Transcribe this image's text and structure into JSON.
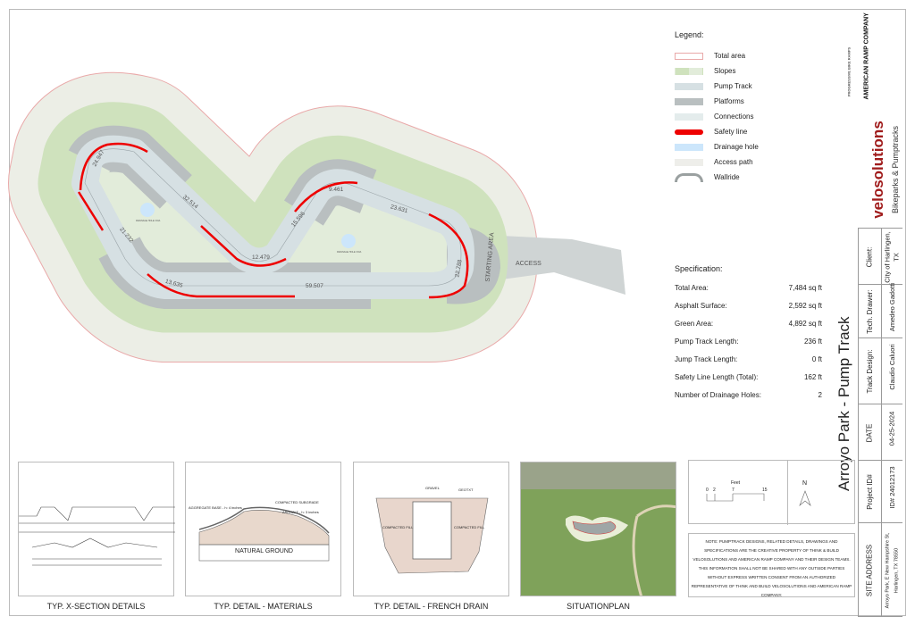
{
  "title": "Arroyo Park - Pump Track",
  "legend": {
    "heading": "Legend:",
    "items": [
      {
        "label": "Total area",
        "color": "#ffffff",
        "border": "#e9a9a9"
      },
      {
        "label": "Slopes",
        "color": "#cfe2bd"
      },
      {
        "label": "Pump Track",
        "color": "#d6e0e3"
      },
      {
        "label": "Platforms",
        "color": "#b9bfc0"
      },
      {
        "label": "Connections",
        "color": "#e4ecec"
      },
      {
        "label": "Safety line",
        "color": "#ee0000"
      },
      {
        "label": "Drainage hole",
        "color": "#cce6fb"
      },
      {
        "label": "Access path",
        "color": "#eeeeea"
      },
      {
        "label": "Wallride",
        "color": "#9aa0a0"
      }
    ]
  },
  "specification": {
    "heading": "Specification:",
    "rows": [
      {
        "label": "Total Area:",
        "value": "7,484 sq ft"
      },
      {
        "label": "Asphalt Surface:",
        "value": "2,592 sq ft"
      },
      {
        "label": "Green Area:",
        "value": "4,892 sq ft"
      },
      {
        "label": "Pump Track Length:",
        "value": "236 ft"
      },
      {
        "label": "Jump Track Length:",
        "value": "0 ft"
      },
      {
        "label": "Safety Line Length (Total):",
        "value": "162 ft"
      },
      {
        "label": "Number of Drainage Holes:",
        "value": "2"
      }
    ]
  },
  "plan": {
    "dimensions": [
      "24.947",
      "32.514",
      "21.232",
      "12.479",
      "15.596",
      "9.461",
      "23.631",
      "22.788",
      "59.507",
      "13.635"
    ],
    "starting_area": "STARTING AREA",
    "access": "ACCESS",
    "drainage_label": "DRAINAGE HOLE 1'DIA",
    "colors": {
      "total": "#eceee6",
      "slopes": "#cfe2bd",
      "track": "#d6e0e3",
      "platform": "#b9bfc0",
      "safety": "#ee0000",
      "drain": "#cce6fb"
    }
  },
  "title_block": {
    "client_label": "Client:",
    "client": "City of Harlingen, TX",
    "drawer_label": "Tech. Drawer:",
    "drawer": "Amedeo Gadotti",
    "design_label": "Track Design:",
    "design": "Claudio Caluori",
    "date_label": "DATE",
    "date": "04-25-2024",
    "project_label": "Project ID#",
    "project": "ID# 24012173",
    "site_label": "SITE ADDRESS",
    "site": "Arroyo Park, E New Hampshire St, Harlingen, TX 78550"
  },
  "logos": {
    "brand": "velosolutions",
    "tagline": "Bikeparks & Pumptracks",
    "partner1": "PROGRESSIVE BIKE RAMPS",
    "partner2": "AMERICAN RAMP COMPANY",
    "brand_color": "#a01c1c"
  },
  "details": {
    "xsection": "TYP. X-SECTION DETAILS",
    "materials": "TYP. DETAIL - MATERIALS",
    "french_drain": "TYP. DETAIL - FRENCH DRAIN",
    "situation": "SITUATIONPLAN",
    "aggregate": "AGGREGATE BASE - h: 4 inches",
    "subgrade": "COMPACTED SUBGRADE",
    "asphalt": "ASPHALT - h: 3 inches",
    "natural": "NATURAL GROUND",
    "gravel": "GRAVEL",
    "geotxt": "GEOTXT",
    "fill": "COMPACTED FILL"
  },
  "scale": {
    "unit": "Feet",
    "ticks": [
      "0",
      "2",
      "7",
      "15"
    ],
    "north": "N"
  },
  "note": "NOTE: PUMPTRACK DESIGNS, RELATED DETAILS, DRAWINGS AND SPECIFICATIONS ARE THE CREATIVE PROPERTY OF THINK & BUILD VELOSOLUTIONS AND AMERICAN RAMP COMPANY AND THEIR DESIGN TEAMS. THIS INFORMATION SHALL NOT BE SHARED WITH ANY OUTSIDE PARTIES WITHOUT EXPRESS WRITTEN CONSENT FROM AN AUTHORIZED REPRESENTATIVE OF THINK AND BUILD VELOSOLUTIONS AND AMERICAN RAMP COMPANY."
}
